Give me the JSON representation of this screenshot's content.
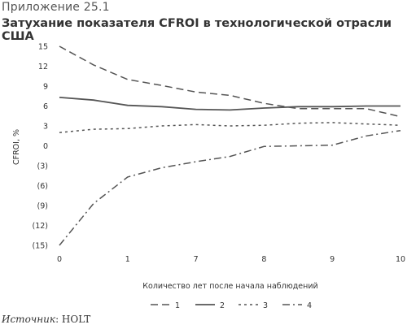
{
  "header": {
    "appendix": "Приложение 25.1",
    "title": "Затухание показателя CFROI в технологической отрасли США"
  },
  "source": {
    "label": "Источник",
    "value": "HOLT"
  },
  "colors": {
    "line": "#555555",
    "text": "#333333"
  },
  "chart_data": {
    "type": "line",
    "title": "Затухание показателя CFROI в технологической отрасли США",
    "xlabel": "Количество лет после начала наблюдений",
    "ylabel": "CFROI, %",
    "ylim": [
      -15,
      15
    ],
    "yticks": [
      "15",
      "12",
      "9",
      "6",
      "3",
      "0",
      "(3)",
      "(6)",
      "(9)",
      "(12)",
      "(15)"
    ],
    "categories": [
      "0",
      "1",
      "7",
      "8",
      "9",
      "10"
    ],
    "x": [
      0,
      0.5,
      1,
      1.5,
      2,
      2.5,
      3,
      3.5,
      4,
      4.5,
      5
    ],
    "series": [
      {
        "name": "1",
        "dash": "dashed",
        "values": [
          15.0,
          12.2,
          10.0,
          9.1,
          8.1,
          7.6,
          6.4,
          5.6,
          5.6,
          5.6,
          4.4
        ]
      },
      {
        "name": "2",
        "dash": "solid",
        "values": [
          7.3,
          6.9,
          6.1,
          5.9,
          5.5,
          5.4,
          5.7,
          5.9,
          5.9,
          6.0,
          6.0
        ]
      },
      {
        "name": "3",
        "dash": "dotted",
        "values": [
          2.0,
          2.5,
          2.6,
          3.0,
          3.2,
          3.0,
          3.1,
          3.4,
          3.5,
          3.3,
          3.1
        ]
      },
      {
        "name": "4",
        "dash": "dashdot",
        "values": [
          -15.0,
          -8.7,
          -4.7,
          -3.3,
          -2.4,
          -1.6,
          -0.1,
          0.0,
          0.1,
          1.5,
          2.3
        ]
      }
    ],
    "grid": false,
    "legend_position": "bottom"
  }
}
